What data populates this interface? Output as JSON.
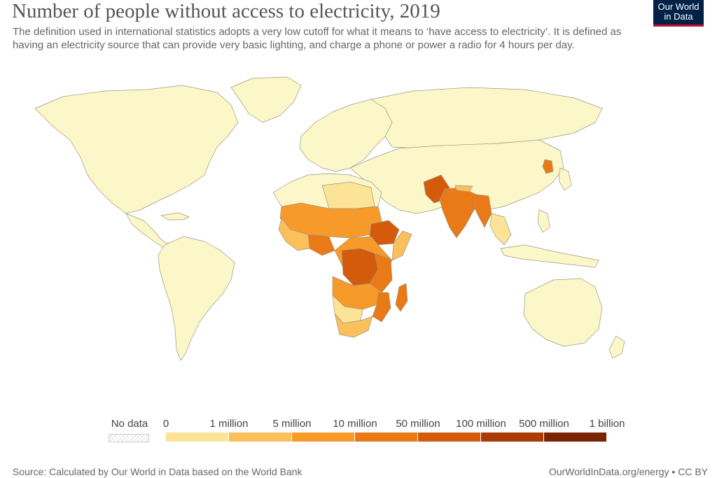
{
  "header": {
    "title": "Number of people without access to electricity, 2019",
    "subtitle": "The definition used in international statistics adopts a very low cutoff  for what it means to ‘have access to electricity’. It is defined as having an electricity source that can provide very basic lighting, and charge a phone or power a radio for 4 hours per day.",
    "logo_line1": "Our World",
    "logo_line2": "in Data"
  },
  "legend": {
    "no_data_label": "No data",
    "bins": [
      {
        "label": "0",
        "color": "#fff7cc"
      },
      {
        "label": "1 million",
        "color": "#fde396"
      },
      {
        "label": "5 million",
        "color": "#fbbf5c"
      },
      {
        "label": "10 million",
        "color": "#f89a2a"
      },
      {
        "label": "50 million",
        "color": "#ea7a17"
      },
      {
        "label": "100 million",
        "color": "#d45a0c"
      },
      {
        "label": "500 million",
        "color": "#a83b06"
      },
      {
        "label": "1 billion",
        "color": "#7a2403"
      }
    ]
  },
  "colors": {
    "ocean": "#ffffff",
    "land_zero": "#fcf7c9",
    "border": "#9a9a80"
  },
  "footer": {
    "source": "Source: Calculated by Our World in Data based on the World Bank",
    "credit": "OurWorldInData.org/energy • CC BY"
  }
}
